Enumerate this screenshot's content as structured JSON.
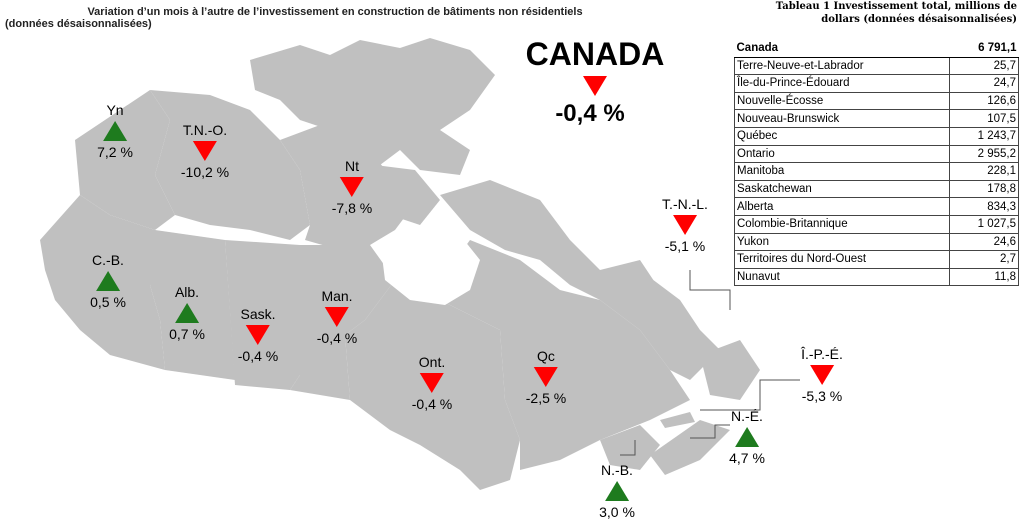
{
  "title_line1": "Variation d’un mois à l’autre de l’investissement en construction de bâtiments non résidentiels",
  "title_line2": "(données désaisonnalisées)",
  "canada": {
    "label": "CANADA",
    "value": "-0,4 %",
    "direction": "down"
  },
  "regions": [
    {
      "abbr": "Yn",
      "value": "7,2 %",
      "direction": "up"
    },
    {
      "abbr": "T.N.-O.",
      "value": "-10,2 %",
      "direction": "down"
    },
    {
      "abbr": "Nt",
      "value": "-7,8 %",
      "direction": "down"
    },
    {
      "abbr": "C.-B.",
      "value": "0,5 %",
      "direction": "up"
    },
    {
      "abbr": "Alb.",
      "value": "0,7 %",
      "direction": "up"
    },
    {
      "abbr": "Sask.",
      "value": "-0,4 %",
      "direction": "down"
    },
    {
      "abbr": "Man.",
      "value": "-0,4 %",
      "direction": "down"
    },
    {
      "abbr": "Ont.",
      "value": "-0,4 %",
      "direction": "down"
    },
    {
      "abbr": "Qc",
      "value": "-2,5 %",
      "direction": "down"
    },
    {
      "abbr": "T.-N.-L.",
      "value": "-5,1 %",
      "direction": "down"
    },
    {
      "abbr": "Î.-P.-É.",
      "value": "-5,3 %",
      "direction": "down"
    },
    {
      "abbr": "N.-É.",
      "value": "4,7 %",
      "direction": "up"
    },
    {
      "abbr": "N.-B.",
      "value": "3,0 %",
      "direction": "up"
    }
  ],
  "table": {
    "title_line1": "Tableau 1 Investissement total, millions de",
    "title_line2": "dollars (données désaisonnalisées)",
    "total": {
      "name": "Canada",
      "value": "6 791,1"
    },
    "rows": [
      {
        "name": "Terre-Neuve-et-Labrador",
        "value": "25,7"
      },
      {
        "name": "Île-du-Prince-Édouard",
        "value": "24,7"
      },
      {
        "name": "Nouvelle-Écosse",
        "value": "126,6"
      },
      {
        "name": "Nouveau-Brunswick",
        "value": "107,5"
      },
      {
        "name": "Québec",
        "value": "1 243,7"
      },
      {
        "name": "Ontario",
        "value": "2 955,2"
      },
      {
        "name": "Manitoba",
        "value": "228,1"
      },
      {
        "name": "Saskatchewan",
        "value": "178,8"
      },
      {
        "name": "Alberta",
        "value": "834,3"
      },
      {
        "name": "Colombie-Britannique",
        "value": "1 027,5"
      },
      {
        "name": "Yukon",
        "value": "24,6"
      },
      {
        "name": "Territoires du Nord-Ouest",
        "value": "2,7"
      },
      {
        "name": "Nunavut",
        "value": "11,8"
      }
    ]
  },
  "colors": {
    "land": "#c0c0c0",
    "border": "#ffffff",
    "up": "#1e7b1e",
    "down": "#ff0000"
  }
}
